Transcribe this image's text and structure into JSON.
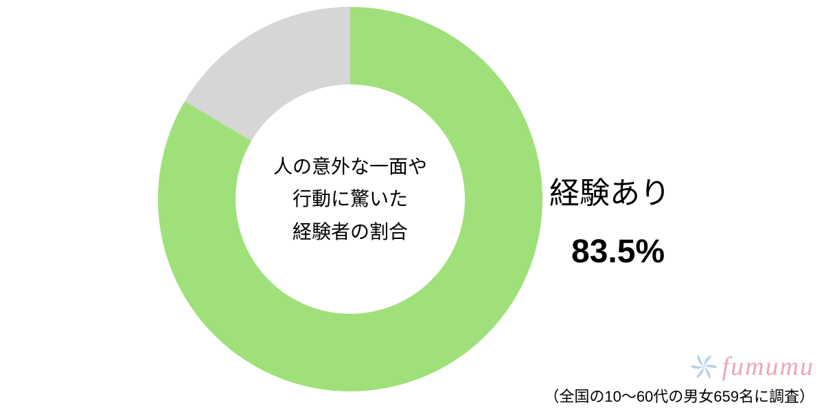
{
  "chart": {
    "type": "donut",
    "value_pct": 83.5,
    "primary_color": "#a0e07a",
    "secondary_color": "#d6d6d6",
    "background_color": "#ffffff",
    "outer_radius": 280,
    "inner_radius": 167,
    "center_lines": [
      "人の意外な一面や",
      "行動に驚いた",
      "経験者の割合"
    ],
    "center_fontsize": 28,
    "center_text_color": "#000000"
  },
  "value_label": {
    "title": "経験あり",
    "value_text": "83.5%",
    "title_fontsize": 44,
    "value_fontsize": 48,
    "text_color": "#000000"
  },
  "brand": {
    "name": "fumumu",
    "color": "#eaa7b8",
    "icon_color": "#a9cbe8",
    "fontsize": 38
  },
  "note": {
    "text": "（全国の10〜60代の男女659名に調査）",
    "fontsize": 22,
    "color": "#000000"
  }
}
